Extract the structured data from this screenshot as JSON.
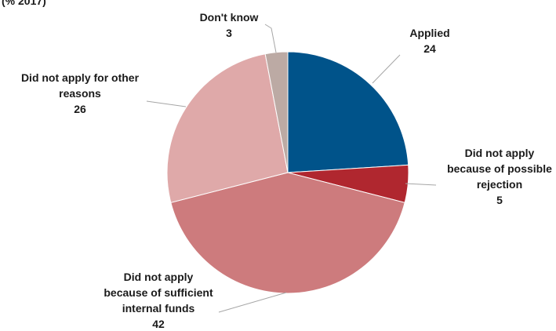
{
  "chart_data": {
    "type": "pie",
    "title": "(% 2017)",
    "slices": [
      {
        "name": "Applied",
        "value": 24,
        "color": "#00538a",
        "label_lines": [
          "Applied"
        ]
      },
      {
        "name": "Did not apply because of possible rejection",
        "value": 5,
        "color": "#b0272f",
        "label_lines": [
          "Did not apply",
          "because of possible",
          "rejection"
        ]
      },
      {
        "name": "Did not apply because of sufficient internal funds",
        "value": 42,
        "color": "#cd7b7d",
        "label_lines": [
          "Did not apply",
          "because of sufficient",
          "internal funds"
        ]
      },
      {
        "name": "Did not apply for other reasons",
        "value": 26,
        "color": "#dfa9a9",
        "label_lines": [
          "Did not apply for other",
          "reasons"
        ]
      },
      {
        "name": "Don't know",
        "value": 3,
        "color": "#bcaaa4",
        "label_lines": [
          "Don't know"
        ]
      }
    ],
    "legend": "none",
    "data_labels": "outside with leader lines"
  }
}
